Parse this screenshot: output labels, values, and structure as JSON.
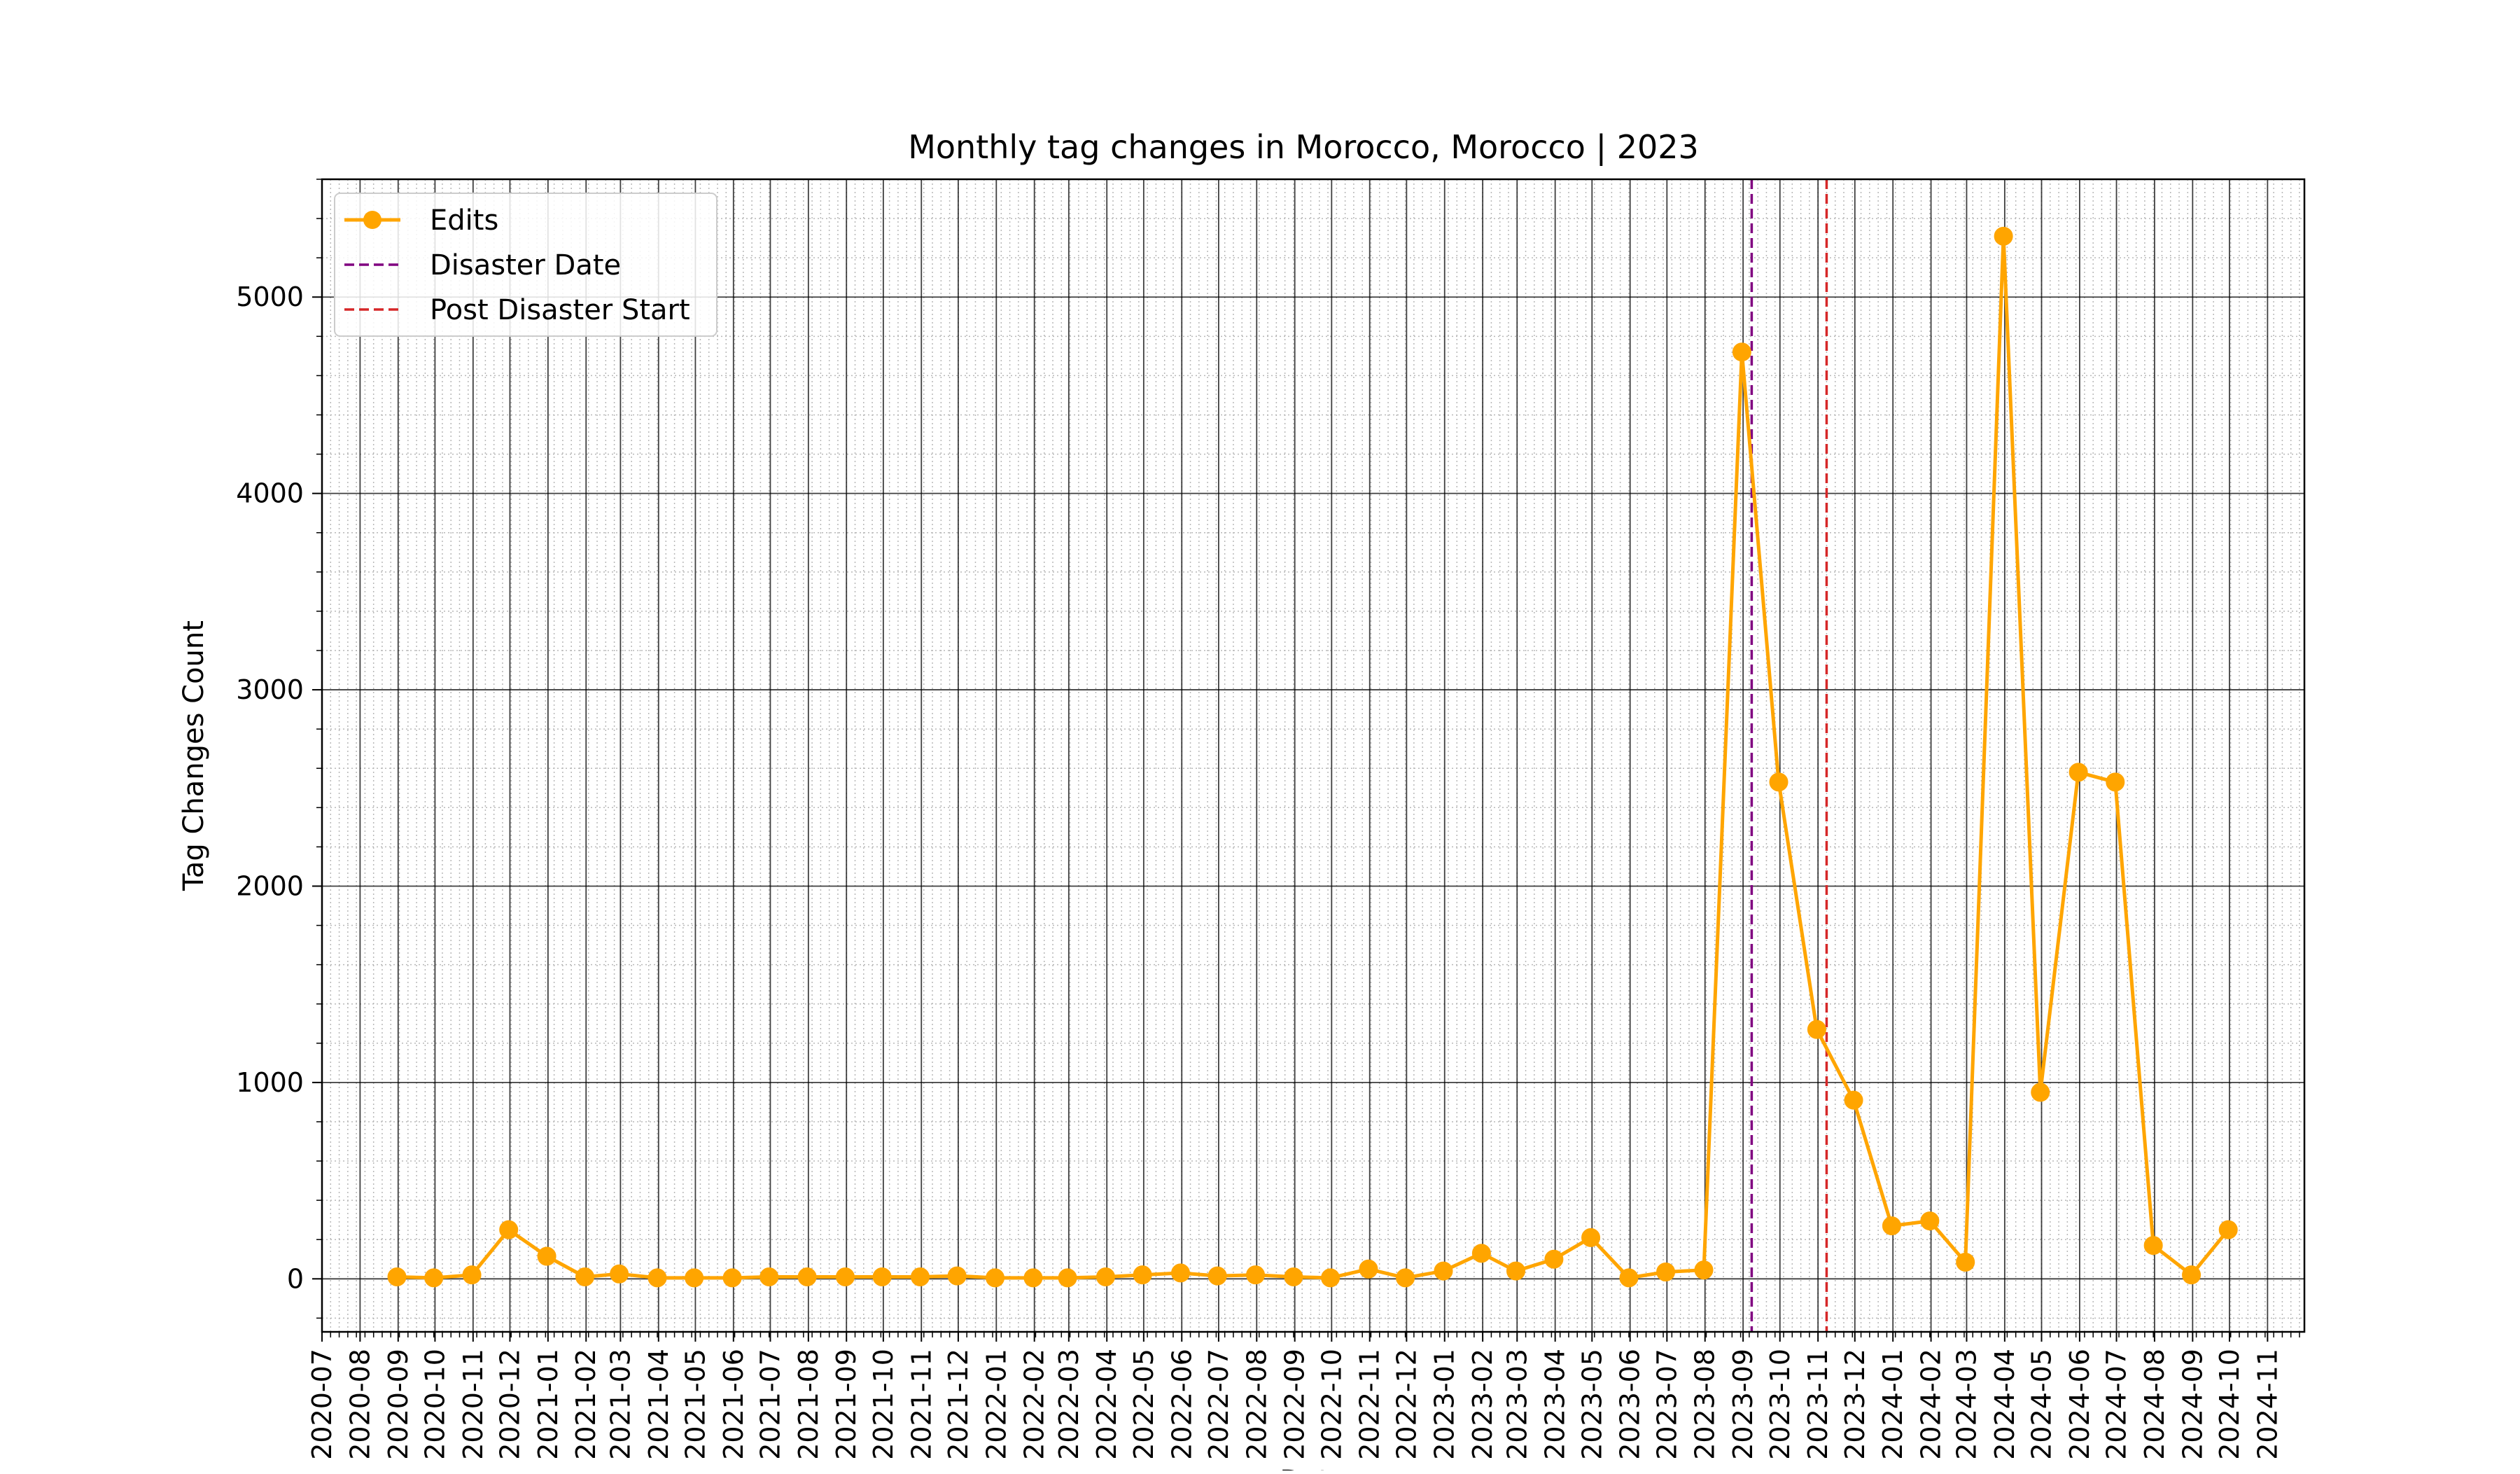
{
  "chart_data": {
    "type": "line",
    "title": "Monthly tag changes in Morocco, Morocco | 2023",
    "xlabel": "Date",
    "ylabel": "Tag Changes Count",
    "x_range": [
      "2020-07",
      "2024-12"
    ],
    "ylim": [
      -270,
      5600
    ],
    "y_ticks": [
      "0",
      "1000",
      "2000",
      "3000",
      "4000",
      "5000"
    ],
    "x_ticks": [
      "2020-07",
      "2020-08",
      "2020-09",
      "2020-10",
      "2020-11",
      "2020-12",
      "2021-01",
      "2021-02",
      "2021-03",
      "2021-04",
      "2021-05",
      "2021-06",
      "2021-07",
      "2021-08",
      "2021-09",
      "2021-10",
      "2021-11",
      "2021-12",
      "2022-01",
      "2022-02",
      "2022-03",
      "2022-04",
      "2022-05",
      "2022-06",
      "2022-07",
      "2022-08",
      "2022-09",
      "2022-10",
      "2022-11",
      "2022-12",
      "2023-01",
      "2023-02",
      "2023-03",
      "2023-04",
      "2023-05",
      "2023-06",
      "2023-07",
      "2023-08",
      "2023-09",
      "2023-10",
      "2023-11",
      "2023-12",
      "2024-01",
      "2024-02",
      "2024-03",
      "2024-04",
      "2024-05",
      "2024-06",
      "2024-07",
      "2024-08",
      "2024-09",
      "2024-10",
      "2024-11"
    ],
    "grid": true,
    "legend": {
      "placement": "upper-left",
      "entries": [
        {
          "label": "Edits",
          "style": "line-marker",
          "color": "#FFA500"
        },
        {
          "label": "Disaster Date",
          "style": "dashed",
          "color": "#800080"
        },
        {
          "label": "Post Disaster Start",
          "style": "dashed",
          "color": "#D62728"
        }
      ]
    },
    "series": [
      {
        "name": "Edits",
        "color": "#FFA500",
        "x": [
          "2020-08-31",
          "2020-09-30",
          "2020-10-31",
          "2020-11-30",
          "2020-12-31",
          "2021-01-31",
          "2021-02-28",
          "2021-03-31",
          "2021-04-30",
          "2021-05-31",
          "2021-06-30",
          "2021-07-31",
          "2021-08-31",
          "2021-09-30",
          "2021-10-31",
          "2021-11-30",
          "2021-12-31",
          "2022-01-31",
          "2022-02-28",
          "2022-03-31",
          "2022-04-30",
          "2022-05-31",
          "2022-06-30",
          "2022-07-31",
          "2022-08-31",
          "2022-09-30",
          "2022-10-31",
          "2022-11-30",
          "2022-12-31",
          "2023-01-31",
          "2023-02-28",
          "2023-03-31",
          "2023-04-30",
          "2023-05-31",
          "2023-06-30",
          "2023-07-31",
          "2023-08-31",
          "2023-09-30",
          "2023-10-31",
          "2023-11-30",
          "2023-12-31",
          "2024-01-31",
          "2024-02-29",
          "2024-03-31",
          "2024-04-30",
          "2024-05-31",
          "2024-06-30",
          "2024-07-31",
          "2024-08-31",
          "2024-09-30"
        ],
        "values": [
          10,
          5,
          20,
          250,
          115,
          10,
          25,
          5,
          5,
          5,
          10,
          10,
          10,
          10,
          10,
          15,
          5,
          5,
          5,
          10,
          20,
          30,
          15,
          20,
          10,
          5,
          50,
          5,
          40,
          130,
          40,
          100,
          210,
          5,
          35,
          45,
          4720,
          2530,
          1270,
          910,
          270,
          295,
          85,
          5310,
          950,
          2580,
          2530,
          170,
          20,
          250
        ]
      }
    ],
    "vlines": [
      {
        "name": "Disaster Date",
        "x": "2023-09-08",
        "color": "#800080",
        "style": "dashed"
      },
      {
        "name": "Post Disaster Start",
        "x": "2023-11-08",
        "color": "#D62728",
        "style": "dashed"
      }
    ]
  }
}
